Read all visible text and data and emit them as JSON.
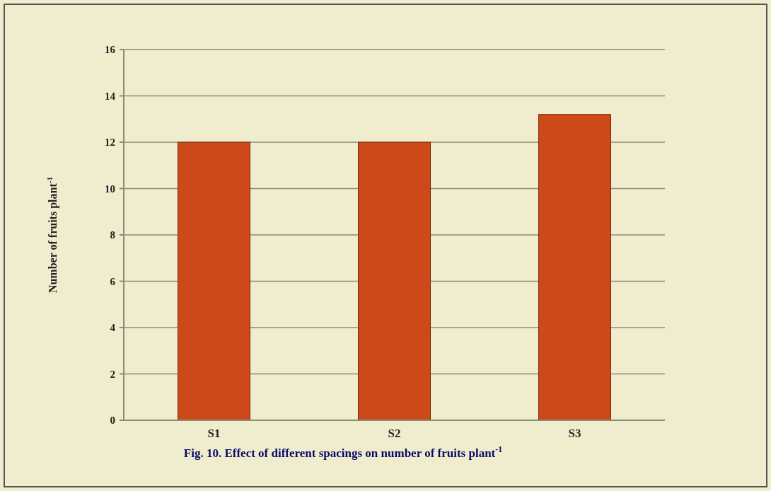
{
  "chart_data": {
    "type": "bar",
    "categories": [
      "S1",
      "S2",
      "S3"
    ],
    "values": [
      12,
      12,
      13.2
    ],
    "color": "#cc4a1a",
    "ylim": [
      0,
      16
    ],
    "yticks": [
      0,
      2,
      4,
      6,
      8,
      10,
      12,
      14,
      16
    ],
    "grid": "y",
    "ylabel": "Number of fruits plant$^{-1}$",
    "annotations": [
      "Fig. 10. Effect of different spacings on number of fruits plant$^{-1}$"
    ]
  }
}
